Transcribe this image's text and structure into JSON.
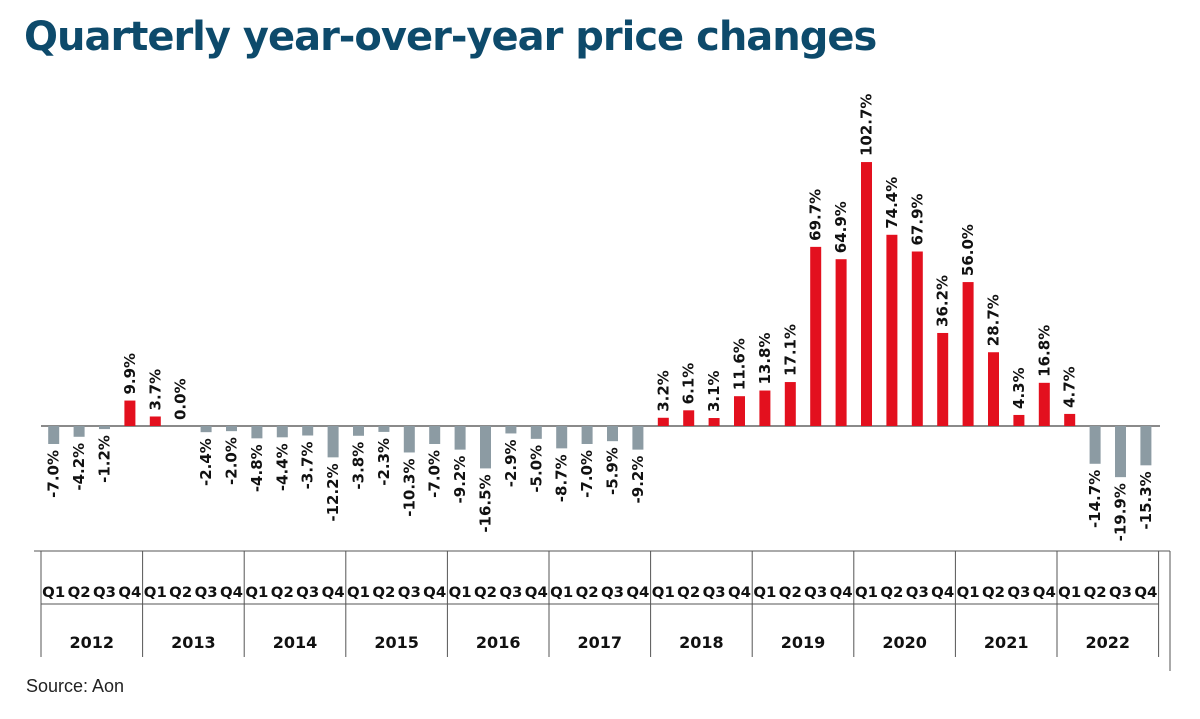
{
  "title": "Quarterly year-over-year price changes",
  "source": "Source: Aon",
  "colors": {
    "positive": "#e3101e",
    "negative": "#8c9ba3",
    "title": "#0d4a6b"
  },
  "chart_data": {
    "type": "bar",
    "title": "Quarterly year-over-year price changes",
    "xlabel": "",
    "ylabel": "",
    "grid": false,
    "quarter_labels": [
      "Q1",
      "Q2",
      "Q3",
      "Q4"
    ],
    "years": [
      "2012",
      "2013",
      "2014",
      "2015",
      "2016",
      "2017",
      "2018",
      "2019",
      "2020",
      "2021",
      "2022"
    ],
    "values": [
      -7.0,
      -4.2,
      -1.2,
      9.9,
      3.7,
      0.0,
      -2.4,
      -2.0,
      -4.8,
      -4.4,
      -3.7,
      -12.2,
      -3.8,
      -2.3,
      -10.3,
      -7.0,
      -9.2,
      -16.5,
      -2.9,
      -5.0,
      -8.7,
      -7.0,
      -5.9,
      -9.2,
      3.2,
      6.1,
      3.1,
      11.6,
      13.8,
      17.1,
      69.7,
      64.9,
      102.7,
      74.4,
      67.9,
      36.2,
      56.0,
      28.7,
      4.3,
      16.8,
      4.7,
      -14.7,
      -19.9,
      -15.3
    ],
    "labels": [
      "-7.0%",
      "-4.2%",
      "-1.2%",
      "9.9%",
      "3.7%",
      "0.0%",
      "-2.4%",
      "-2.0%",
      "-4.8%",
      "-4.4%",
      "-3.7%",
      "-12.2%",
      "-3.8%",
      "-2.3%",
      "-10.3%",
      "-7.0%",
      "-9.2%",
      "-16.5%",
      "-2.9%",
      "-5.0%",
      "-8.7%",
      "-7.0%",
      "-5.9%",
      "-9.2%",
      "3.2%",
      "6.1%",
      "3.1%",
      "11.6%",
      "13.8%",
      "17.1%",
      "69.7%",
      "64.9%",
      "102.7%",
      "74.4%",
      "67.9%",
      "36.2%",
      "56.0%",
      "28.7%",
      "4.3%",
      "16.8%",
      "4.7%",
      "-14.7%",
      "-19.9%",
      "-15.3%"
    ]
  }
}
